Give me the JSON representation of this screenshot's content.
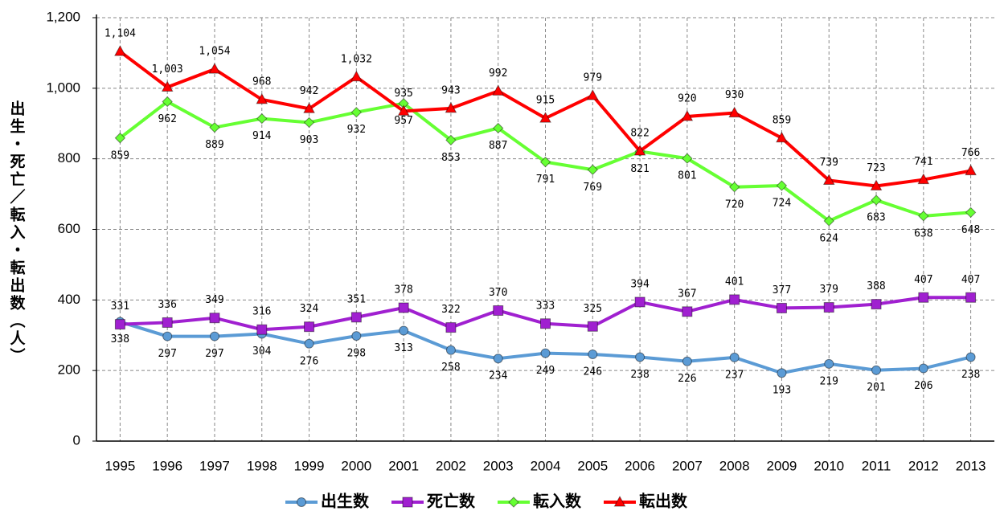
{
  "chart_data": {
    "type": "line",
    "y_label": "出生・死亡／転入・転出数（人）",
    "categories": [
      "1995",
      "1996",
      "1997",
      "1998",
      "1999",
      "2000",
      "2001",
      "2002",
      "2003",
      "2004",
      "2005",
      "2006",
      "2007",
      "2008",
      "2009",
      "2010",
      "2011",
      "2012",
      "2013"
    ],
    "ylim": [
      0,
      1200
    ],
    "yticks": [
      0,
      200,
      400,
      600,
      800,
      {
        "value": 1000,
        "label": "1,000"
      },
      {
        "value": 1200,
        "label": "1,200"
      }
    ],
    "grid": true,
    "legend": "bottom",
    "series": [
      {
        "name": "出生数",
        "color": "#5b9bd5",
        "marker": "circle",
        "values": [
          338,
          297,
          297,
          304,
          276,
          298,
          313,
          258,
          234,
          249,
          246,
          238,
          226,
          237,
          193,
          219,
          201,
          206,
          238
        ]
      },
      {
        "name": "死亡数",
        "color": "#a020d0",
        "marker": "square",
        "values": [
          331,
          336,
          349,
          316,
          324,
          351,
          378,
          322,
          370,
          333,
          325,
          394,
          367,
          401,
          377,
          379,
          388,
          407,
          407
        ]
      },
      {
        "name": "転入数",
        "color": "#66ff33",
        "marker": "diamond",
        "values": [
          859,
          962,
          889,
          914,
          903,
          932,
          957,
          853,
          887,
          791,
          769,
          821,
          801,
          720,
          724,
          624,
          683,
          638,
          648
        ]
      },
      {
        "name": "転出数",
        "color": "#ff0000",
        "marker": "triangle",
        "values": [
          1104,
          1003,
          1054,
          968,
          942,
          1032,
          935,
          943,
          992,
          915,
          979,
          822,
          920,
          930,
          859,
          739,
          723,
          741,
          766
        ],
        "value_labels": [
          "1,104",
          "1,003",
          "1,054",
          "968",
          "942",
          "1,032",
          "935",
          "943",
          "992",
          "915",
          "979",
          "822",
          "920",
          "930",
          "859",
          "739",
          "723",
          "741",
          "766"
        ]
      }
    ]
  }
}
